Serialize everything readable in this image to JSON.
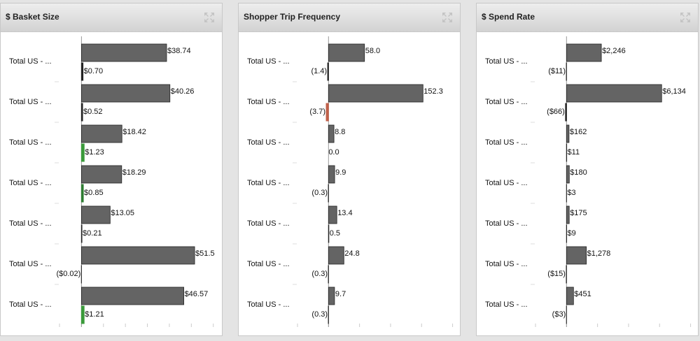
{
  "chart_data": [
    {
      "type": "bar",
      "title": "$ Basket Size",
      "categories": [
        "Total US - ...",
        "Total US - ...",
        "Total US - ...",
        "Total US - ...",
        "Total US - ...",
        "Total US - ...",
        "Total US - ..."
      ],
      "series": [
        {
          "color": "#646464",
          "values": [
            38.74,
            40.26,
            18.42,
            18.29,
            13.05,
            51.5,
            46.57
          ],
          "value_labels": [
            "$38.74",
            "$40.26",
            "$18.42",
            "$18.29",
            "$13.05",
            "$51.5",
            "$46.57"
          ]
        },
        {
          "colors": [
            "#222222",
            "#222222",
            "#3a9a3a",
            "#2e7d32",
            "#222222",
            "#222222",
            "#3a9a3a"
          ],
          "values": [
            0.7,
            0.52,
            1.23,
            0.85,
            0.21,
            -0.02,
            1.21
          ],
          "value_labels": [
            "$0.70",
            "$0.52",
            "$1.23",
            "$0.85",
            "$0.21",
            "($0.02)",
            "$1.21"
          ]
        }
      ],
      "xlim": [
        -10,
        62
      ],
      "xticks": [
        -10,
        0,
        10,
        20,
        30,
        40,
        50,
        60
      ]
    },
    {
      "type": "bar",
      "title": "Shopper Trip Frequency",
      "categories": [
        "Total US - ...",
        "Total US - ...",
        "Total US - ...",
        "Total US - ...",
        "Total US - ...",
        "Total US - ...",
        "Total US - ..."
      ],
      "series": [
        {
          "color": "#646464",
          "values": [
            58.0,
            152.3,
            8.8,
            9.9,
            13.4,
            24.8,
            9.7
          ],
          "value_labels": [
            "58.0",
            "152.3",
            "8.8",
            "9.9",
            "13.4",
            "24.8",
            "9.7"
          ]
        },
        {
          "colors": [
            "#222222",
            "#c0604a",
            "#222222",
            "#222222",
            "#222222",
            "#222222",
            "#222222"
          ],
          "values": [
            -1.4,
            -3.7,
            0.0,
            -0.3,
            0.5,
            -0.3,
            -0.3
          ],
          "value_labels": [
            "(1.4)",
            "(3.7)",
            "0.0",
            "(0.3)",
            "0.5",
            "(0.3)",
            "(0.3)"
          ]
        }
      ],
      "xlim": [
        -50,
        205
      ],
      "xticks": [
        -50,
        0,
        50,
        100,
        150,
        200
      ]
    },
    {
      "type": "bar",
      "title": "$ Spend Rate",
      "categories": [
        "Total US - ...",
        "Total US - ...",
        "Total US - ...",
        "Total US - ...",
        "Total US - ...",
        "Total US - ...",
        "Total US - ..."
      ],
      "series": [
        {
          "color": "#646464",
          "values": [
            2246,
            6134,
            162,
            180,
            175,
            1278,
            451
          ],
          "value_labels": [
            "$2,246",
            "$6,134",
            "$162",
            "$180",
            "$175",
            "$1,278",
            "$451"
          ]
        },
        {
          "colors": [
            "#222222",
            "#222222",
            "#222222",
            "#222222",
            "#222222",
            "#222222",
            "#222222"
          ],
          "values": [
            -11,
            -66,
            11,
            3,
            9,
            -15,
            -3
          ],
          "value_labels": [
            "($11)",
            "($66)",
            "$11",
            "$3",
            "$9",
            "($15)",
            "($3)"
          ]
        }
      ],
      "xlim": [
        -2000,
        8200
      ],
      "xticks": [
        -2000,
        0,
        2000,
        4000,
        6000,
        8000
      ]
    }
  ]
}
